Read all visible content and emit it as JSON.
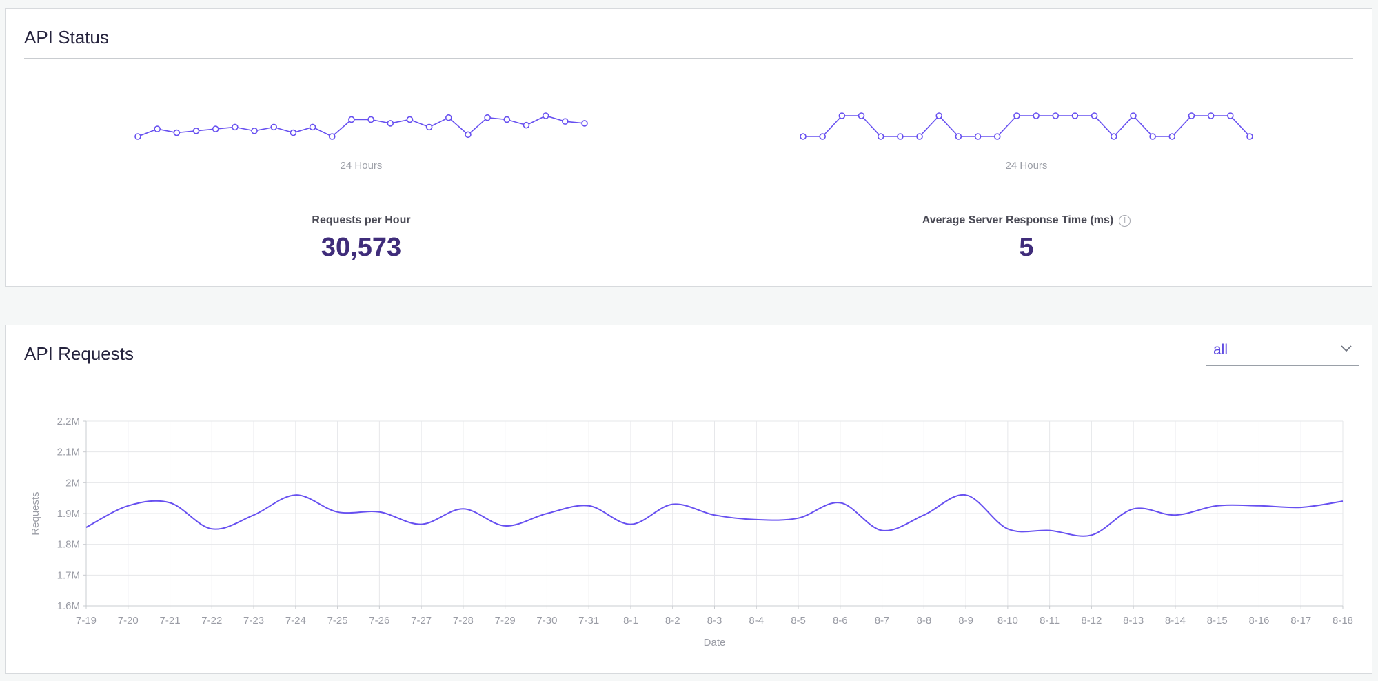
{
  "status": {
    "title": "API Status",
    "requests": {
      "label": "Requests per Hour",
      "value": "30,573",
      "range_label": "24 Hours",
      "spark_values": [
        30,
        30.4,
        30.2,
        30.3,
        30.4,
        30.5,
        30.3,
        30.5,
        30.2,
        30.5,
        30,
        30.9,
        30.9,
        30.7,
        30.9,
        30.5,
        31,
        30.1,
        31,
        30.9,
        30.6,
        31.1,
        30.8,
        30.7
      ]
    },
    "response": {
      "label": "Average Server Response Time (ms)",
      "value": "5",
      "range_label": "24 Hours",
      "spark_values": [
        4,
        4,
        5,
        5,
        4,
        4,
        4,
        5,
        4,
        4,
        4,
        5,
        5,
        5,
        5,
        5,
        4,
        5,
        4,
        4,
        5,
        5,
        5,
        4
      ]
    }
  },
  "requests": {
    "title": "API Requests",
    "filter": {
      "selected": "all"
    }
  },
  "colors": {
    "accent": "#6750f0",
    "value_text": "#3f2c7a",
    "grid": "#e6e7ea"
  },
  "chart_data": {
    "type": "line",
    "title": "",
    "xlabel": "Date",
    "ylabel": "Requests",
    "ylim": [
      1600000,
      2200000
    ],
    "y_ticks": [
      1600000,
      1700000,
      1800000,
      1900000,
      2000000,
      2100000,
      2200000
    ],
    "y_tick_labels": [
      "1.6M",
      "1.7M",
      "1.8M",
      "1.9M",
      "2M",
      "2.1M",
      "2.2M"
    ],
    "grid": true,
    "categories": [
      "7-19",
      "7-20",
      "7-21",
      "7-22",
      "7-23",
      "7-24",
      "7-25",
      "7-26",
      "7-27",
      "7-28",
      "7-29",
      "7-30",
      "7-31",
      "8-1",
      "8-2",
      "8-3",
      "8-4",
      "8-5",
      "8-6",
      "8-7",
      "8-8",
      "8-9",
      "8-10",
      "8-11",
      "8-12",
      "8-13",
      "8-14",
      "8-15",
      "8-16",
      "8-17",
      "8-18"
    ],
    "series": [
      {
        "values": [
          1855000,
          1925000,
          1935000,
          1850000,
          1895000,
          1960000,
          1905000,
          1905000,
          1865000,
          1915000,
          1860000,
          1900000,
          1925000,
          1865000,
          1930000,
          1895000,
          1880000,
          1885000,
          1935000,
          1845000,
          1895000,
          1960000,
          1850000,
          1845000,
          1830000,
          1915000,
          1895000,
          1925000,
          1925000,
          1920000,
          1940000
        ]
      }
    ]
  }
}
